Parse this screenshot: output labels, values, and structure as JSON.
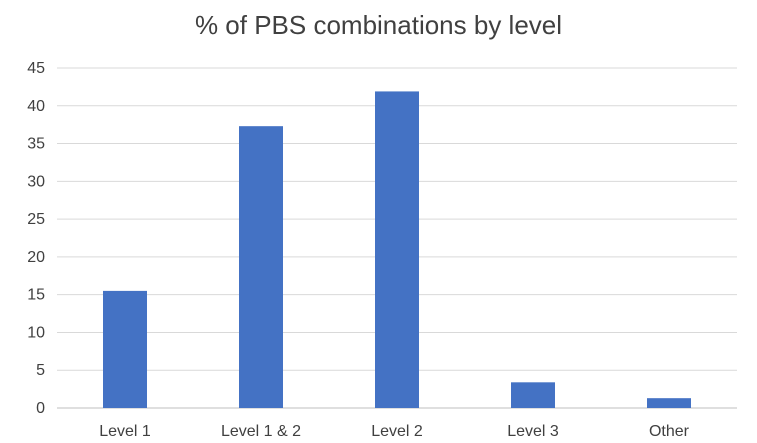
{
  "chart_data": {
    "type": "bar",
    "title": "% of PBS combinations by level",
    "categories": [
      "Level 1",
      "Level 1 & 2",
      "Level 2",
      "Level 3",
      "Other"
    ],
    "values": [
      15.5,
      37.3,
      41.9,
      3.4,
      1.3
    ],
    "ylim": [
      0,
      45
    ],
    "yticks": [
      0,
      5,
      10,
      15,
      20,
      25,
      30,
      35,
      40,
      45
    ],
    "grid": true,
    "legend": "none",
    "bar_color": "#4472c4"
  }
}
